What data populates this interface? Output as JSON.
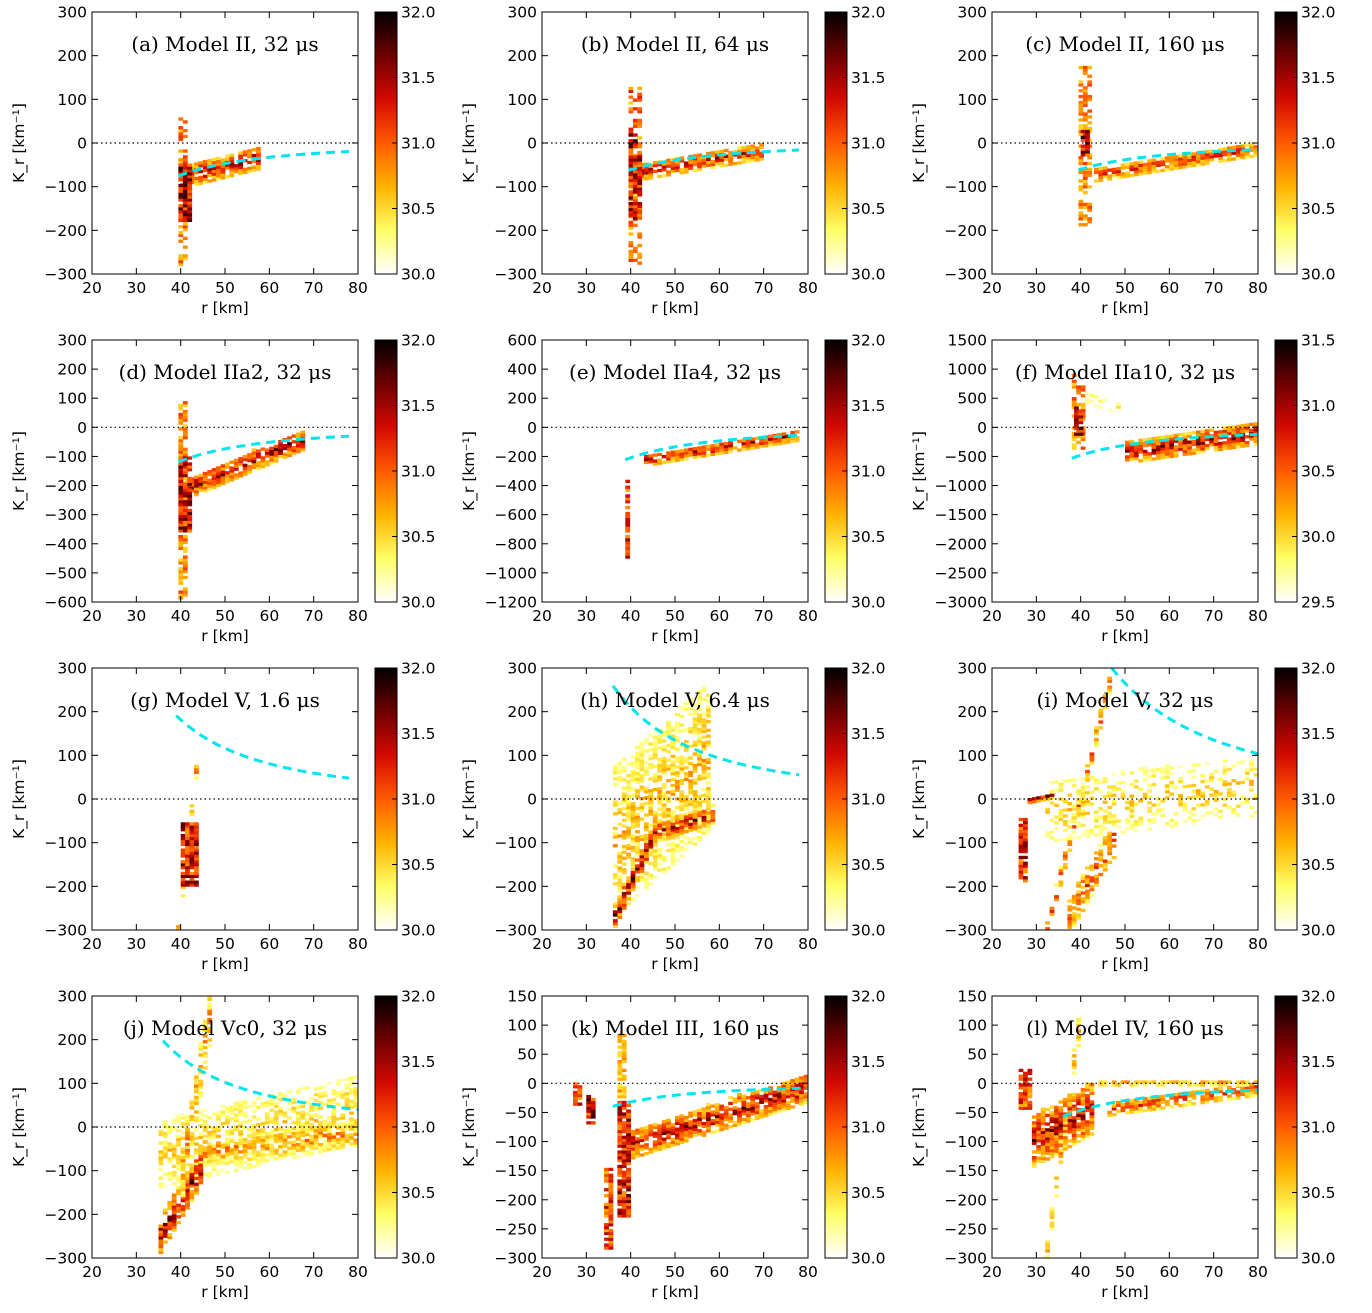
{
  "colormap": {
    "name": "afmhot_r",
    "stops": [
      "#ffffff",
      "#ffff66",
      "#ffb300",
      "#ff5a00",
      "#d40a00",
      "#6e0000",
      "#000000"
    ]
  },
  "fit_color": "#00e5ee",
  "chart_data": [
    {
      "type": "heatmap",
      "panel": "a",
      "label": "(a) Model II, 32 μs",
      "xlabel": "r [km]",
      "ylabel": "K_r [km⁻¹]",
      "xlim": [
        20,
        80
      ],
      "ylim": [
        -300,
        300
      ],
      "xticks": [
        "20",
        "30",
        "40",
        "50",
        "60",
        "70",
        "80"
      ],
      "yticks": [
        "300",
        "200",
        "100",
        "0",
        "−100",
        "−200",
        "−300"
      ],
      "colorbar": {
        "min": 30.0,
        "max": 32.0,
        "ticks": [
          "32.0",
          "31.5",
          "31.0",
          "30.5",
          "30.0"
        ]
      },
      "zero_line": true,
      "fit_x_end": 78,
      "regions": [
        {
          "x": [
            40,
            58
          ],
          "y_at_start": -80,
          "y_at_end": -35,
          "spread": 25,
          "intensity": 0.75,
          "density": 0.85
        },
        {
          "x": [
            39.5,
            41.5
          ],
          "y_at_start": -280,
          "y_at_end": 50,
          "spread": 8,
          "intensity": 0.55,
          "density": 0.5
        },
        {
          "x": [
            39.5,
            42
          ],
          "y_at_start": -160,
          "y_at_end": -70,
          "spread": 20,
          "intensity": 0.9,
          "density": 0.9
        }
      ]
    },
    {
      "type": "heatmap",
      "panel": "b",
      "label": "(b) Model II, 64 μs",
      "xlabel": "r [km]",
      "ylabel": "K_r [km⁻¹]",
      "xlim": [
        20,
        80
      ],
      "ylim": [
        -300,
        300
      ],
      "xticks": [
        "20",
        "30",
        "40",
        "50",
        "60",
        "70",
        "80"
      ],
      "yticks": [
        "300",
        "200",
        "100",
        "0",
        "−100",
        "−200",
        "−300"
      ],
      "colorbar": {
        "min": 30.0,
        "max": 32.0,
        "ticks": [
          "32.0",
          "31.5",
          "31.0",
          "30.5",
          "30.0"
        ]
      },
      "zero_line": true,
      "fit_x_end": 78,
      "regions": [
        {
          "x": [
            41,
            70
          ],
          "y_at_start": -70,
          "y_at_end": -20,
          "spread": 18,
          "intensity": 0.7,
          "density": 0.8
        },
        {
          "x": [
            39.5,
            42
          ],
          "y_at_start": -270,
          "y_at_end": 120,
          "spread": 8,
          "intensity": 0.6,
          "density": 0.55
        },
        {
          "x": [
            39.5,
            42
          ],
          "y_at_start": -150,
          "y_at_end": -60,
          "spread": 25,
          "intensity": 0.85,
          "density": 0.85
        },
        {
          "x": [
            39.5,
            41
          ],
          "y_at_start": -10,
          "y_at_end": 10,
          "spread": 8,
          "intensity": 0.95,
          "density": 0.9
        }
      ]
    },
    {
      "type": "heatmap",
      "panel": "c",
      "label": "(c) Model II, 160 μs",
      "xlabel": "r [km]",
      "ylabel": "K_r [km⁻¹]",
      "xlim": [
        20,
        80
      ],
      "ylim": [
        -300,
        300
      ],
      "xticks": [
        "20",
        "30",
        "40",
        "50",
        "60",
        "70",
        "80"
      ],
      "yticks": [
        "300",
        "200",
        "100",
        "0",
        "−100",
        "−200",
        "−300"
      ],
      "colorbar": {
        "min": 30.0,
        "max": 32.0,
        "ticks": [
          "32.0",
          "31.5",
          "31.0",
          "30.5",
          "30.0"
        ]
      },
      "zero_line": true,
      "fit_x_end": 80,
      "regions": [
        {
          "x": [
            43,
            80
          ],
          "y_at_start": -75,
          "y_at_end": -15,
          "spread": 15,
          "intensity": 0.65,
          "density": 0.85
        },
        {
          "x": [
            39.5,
            42
          ],
          "y_at_start": -180,
          "y_at_end": 160,
          "spread": 10,
          "intensity": 0.55,
          "density": 0.5
        },
        {
          "x": [
            40,
            41.5
          ],
          "y_at_start": -20,
          "y_at_end": 20,
          "spread": 10,
          "intensity": 0.9,
          "density": 0.9
        }
      ]
    },
    {
      "type": "heatmap",
      "panel": "d",
      "label": "(d) Model IIa2, 32 μs",
      "xlabel": "r [km]",
      "ylabel": "K_r [km⁻¹]",
      "xlim": [
        20,
        80
      ],
      "ylim": [
        -600,
        300
      ],
      "xticks": [
        "20",
        "30",
        "40",
        "50",
        "60",
        "70",
        "80"
      ],
      "yticks": [
        "300",
        "200",
        "100",
        "0",
        "−100",
        "−200",
        "−300",
        "−400",
        "−500",
        "−600"
      ],
      "colorbar": {
        "min": 30.0,
        "max": 32.0,
        "ticks": [
          "32.0",
          "31.5",
          "31.0",
          "30.5",
          "30.0"
        ]
      },
      "zero_line": true,
      "fit_x_end": 78,
      "regions": [
        {
          "x": [
            40,
            68
          ],
          "y_at_start": -220,
          "y_at_end": -40,
          "spread": 35,
          "intensity": 0.78,
          "density": 0.85
        },
        {
          "x": [
            39.5,
            41
          ],
          "y_at_start": -580,
          "y_at_end": 80,
          "spread": 10,
          "intensity": 0.55,
          "density": 0.55
        },
        {
          "x": [
            39.5,
            42
          ],
          "y_at_start": -330,
          "y_at_end": -130,
          "spread": 30,
          "intensity": 0.85,
          "density": 0.85
        }
      ]
    },
    {
      "type": "heatmap",
      "panel": "e",
      "label": "(e) Model IIa4, 32 μs",
      "xlabel": "r [km]",
      "ylabel": "K_r [km⁻¹]",
      "xlim": [
        20,
        80
      ],
      "ylim": [
        -1200,
        600
      ],
      "xticks": [
        "20",
        "30",
        "40",
        "50",
        "60",
        "70",
        "80"
      ],
      "yticks": [
        "600",
        "400",
        "200",
        "0",
        "−200",
        "−400",
        "−600",
        "−800",
        "−1000",
        "−1200"
      ],
      "colorbar": {
        "min": 30.0,
        "max": 32.0,
        "ticks": [
          "32.0",
          "31.5",
          "31.0",
          "30.5",
          "30.0"
        ]
      },
      "zero_line": true,
      "fit_x_end": 78,
      "regions": [
        {
          "x": [
            43,
            78
          ],
          "y_at_start": -230,
          "y_at_end": -55,
          "spread": 40,
          "intensity": 0.72,
          "density": 0.85
        },
        {
          "x": [
            38.8,
            39.8
          ],
          "y_at_start": -880,
          "y_at_end": -380,
          "spread": 20,
          "intensity": 0.75,
          "density": 0.8
        }
      ]
    },
    {
      "type": "heatmap",
      "panel": "f",
      "label": "(f) Model IIa10, 32 μs",
      "xlabel": "r [km]",
      "ylabel": "K_r [km⁻¹]",
      "xlim": [
        20,
        80
      ],
      "ylim": [
        -3000,
        1500
      ],
      "xticks": [
        "20",
        "30",
        "40",
        "50",
        "60",
        "70",
        "80"
      ],
      "yticks": [
        "1500",
        "1000",
        "500",
        "0",
        "−500",
        "−1000",
        "−1500",
        "−2000",
        "−2500",
        "−3000"
      ],
      "colorbar": {
        "min": 29.5,
        "max": 31.5,
        "ticks": [
          "31.5",
          "31.0",
          "30.5",
          "30.0",
          "29.5"
        ]
      },
      "zero_line": true,
      "fit_x_end": 80,
      "regions": [
        {
          "x": [
            50,
            80
          ],
          "y_at_start": -450,
          "y_at_end": -120,
          "spread": 180,
          "intensity": 0.78,
          "density": 0.85
        },
        {
          "x": [
            38,
            41
          ],
          "y_at_start": -300,
          "y_at_end": 800,
          "spread": 80,
          "intensity": 0.55,
          "density": 0.5
        },
        {
          "x": [
            38.5,
            40.5
          ],
          "y_at_start": -100,
          "y_at_end": 300,
          "spread": 40,
          "intensity": 0.9,
          "density": 0.9
        },
        {
          "x": [
            41,
            49
          ],
          "y_at_start": 500,
          "y_at_end": 300,
          "spread": 100,
          "intensity": 0.2,
          "density": 0.35
        }
      ]
    },
    {
      "type": "heatmap",
      "panel": "g",
      "label": "(g) Model V, 1.6 μs",
      "xlabel": "r [km]",
      "ylabel": "K_r [km⁻¹]",
      "xlim": [
        20,
        80
      ],
      "ylim": [
        -300,
        300
      ],
      "xticks": [
        "20",
        "30",
        "40",
        "50",
        "60",
        "70",
        "80"
      ],
      "yticks": [
        "300",
        "200",
        "100",
        "0",
        "−100",
        "−200",
        "−300"
      ],
      "colorbar": {
        "min": 30.0,
        "max": 32.0,
        "ticks": [
          "32.0",
          "31.5",
          "31.0",
          "30.5",
          "30.0"
        ]
      },
      "zero_line": true,
      "fit_x_end": 78,
      "regions": [
        {
          "x": [
            39,
            44
          ],
          "y_at_start": -300,
          "y_at_end": 150,
          "spread": 15,
          "intensity": 0.45,
          "density": 0.55
        },
        {
          "x": [
            40,
            44
          ],
          "y_at_start": -180,
          "y_at_end": -80,
          "spread": 20,
          "intensity": 0.85,
          "density": 0.9
        }
      ]
    },
    {
      "type": "heatmap",
      "panel": "h",
      "label": "(h) Model V, 6.4 μs",
      "xlabel": "r [km]",
      "ylabel": "K_r [km⁻¹]",
      "xlim": [
        20,
        80
      ],
      "ylim": [
        -300,
        300
      ],
      "xticks": [
        "20",
        "30",
        "40",
        "50",
        "60",
        "70",
        "80"
      ],
      "yticks": [
        "300",
        "200",
        "100",
        "0",
        "−100",
        "−200",
        "−300"
      ],
      "colorbar": {
        "min": 30.0,
        "max": 32.0,
        "ticks": [
          "32.0",
          "31.5",
          "31.0",
          "30.5",
          "30.0"
        ]
      },
      "zero_line": true,
      "fit_x_end": 78,
      "regions": [
        {
          "x": [
            36,
            58
          ],
          "y_at_start": -100,
          "y_at_end": 100,
          "spread": 170,
          "intensity": 0.35,
          "density": 0.55
        },
        {
          "x": [
            36,
            45
          ],
          "y_at_start": -270,
          "y_at_end": -80,
          "spread": 25,
          "intensity": 0.85,
          "density": 0.9
        },
        {
          "x": [
            45,
            59
          ],
          "y_at_start": -80,
          "y_at_end": -35,
          "spread": 20,
          "intensity": 0.75,
          "density": 0.85
        }
      ]
    },
    {
      "type": "heatmap",
      "panel": "i",
      "label": "(i) Model V, 32 μs",
      "xlabel": "r [km]",
      "ylabel": "K_r [km⁻¹]",
      "xlim": [
        20,
        80
      ],
      "ylim": [
        -300,
        300
      ],
      "xticks": [
        "20",
        "30",
        "40",
        "50",
        "60",
        "70",
        "80"
      ],
      "yticks": [
        "300",
        "200",
        "100",
        "0",
        "−100",
        "−200",
        "−300"
      ],
      "colorbar": {
        "min": 30.0,
        "max": 32.0,
        "ticks": [
          "32.0",
          "31.5",
          "31.0",
          "30.5",
          "30.0"
        ]
      },
      "zero_line": true,
      "fit_x_end": 80,
      "regions": [
        {
          "x": [
            32,
            47
          ],
          "y_at_start": -300,
          "y_at_end": 300,
          "spread": 20,
          "intensity": 0.6,
          "density": 0.65
        },
        {
          "x": [
            32,
            80
          ],
          "y_at_start": -30,
          "y_at_end": 30,
          "spread": 70,
          "intensity": 0.3,
          "density": 0.35
        },
        {
          "x": [
            28,
            34
          ],
          "y_at_start": -6,
          "y_at_end": 6,
          "spread": 5,
          "intensity": 1.0,
          "density": 1.0
        },
        {
          "x": [
            26,
            28
          ],
          "y_at_start": -180,
          "y_at_end": -60,
          "spread": 10,
          "intensity": 0.8,
          "density": 0.85
        },
        {
          "x": [
            37,
            48
          ],
          "y_at_start": -270,
          "y_at_end": -80,
          "spread": 40,
          "intensity": 0.6,
          "density": 0.7
        }
      ]
    },
    {
      "type": "heatmap",
      "panel": "j",
      "label": "(j) Model Vc0, 32 μs",
      "xlabel": "r [km]",
      "ylabel": "K_r [km⁻¹]",
      "xlim": [
        20,
        80
      ],
      "ylim": [
        -300,
        300
      ],
      "xticks": [
        "20",
        "30",
        "40",
        "50",
        "60",
        "70",
        "80"
      ],
      "yticks": [
        "300",
        "200",
        "100",
        "0",
        "−100",
        "−200",
        "−300"
      ],
      "colorbar": {
        "min": 30.0,
        "max": 32.0,
        "ticks": [
          "32.0",
          "31.5",
          "31.0",
          "30.5",
          "30.0"
        ]
      },
      "zero_line": true,
      "fit_x_end": 80,
      "regions": [
        {
          "x": [
            35,
            80
          ],
          "y_at_start": -60,
          "y_at_end": 40,
          "spread": 80,
          "intensity": 0.3,
          "density": 0.5
        },
        {
          "x": [
            35,
            45
          ],
          "y_at_start": -250,
          "y_at_end": -80,
          "spread": 40,
          "intensity": 0.8,
          "density": 0.85
        },
        {
          "x": [
            40,
            47
          ],
          "y_at_start": -100,
          "y_at_end": 300,
          "spread": 60,
          "intensity": 0.45,
          "density": 0.6
        },
        {
          "x": [
            45,
            80
          ],
          "y_at_start": -60,
          "y_at_end": -15,
          "spread": 30,
          "intensity": 0.45,
          "density": 0.6
        }
      ]
    },
    {
      "type": "heatmap",
      "panel": "k",
      "label": "(k) Model III, 160 μs",
      "xlabel": "r [km]",
      "ylabel": "K_r [km⁻¹]",
      "xlim": [
        20,
        80
      ],
      "ylim": [
        -300,
        150
      ],
      "xticks": [
        "20",
        "30",
        "40",
        "50",
        "60",
        "70",
        "80"
      ],
      "yticks": [
        "150",
        "100",
        "50",
        "0",
        "−50",
        "−100",
        "−150",
        "−200",
        "−250",
        "−300"
      ],
      "colorbar": {
        "min": 30.0,
        "max": 32.0,
        "ticks": [
          "32.0",
          "31.5",
          "31.0",
          "30.5",
          "30.0"
        ]
      },
      "zero_line": true,
      "fit_x_end": 80,
      "regions": [
        {
          "x": [
            38,
            80
          ],
          "y_at_start": -110,
          "y_at_end": -8,
          "spread": 25,
          "intensity": 0.75,
          "density": 0.85
        },
        {
          "x": [
            37,
            40
          ],
          "y_at_start": -200,
          "y_at_end": -60,
          "spread": 30,
          "intensity": 0.85,
          "density": 0.85
        },
        {
          "x": [
            34,
            36
          ],
          "y_at_start": -260,
          "y_at_end": -170,
          "spread": 25,
          "intensity": 0.7,
          "density": 0.8
        },
        {
          "x": [
            27,
            29
          ],
          "y_at_start": -30,
          "y_at_end": -10,
          "spread": 8,
          "intensity": 0.7,
          "density": 0.8
        },
        {
          "x": [
            30,
            32
          ],
          "y_at_start": -60,
          "y_at_end": -30,
          "spread": 10,
          "intensity": 0.9,
          "density": 0.85
        },
        {
          "x": [
            37,
            39
          ],
          "y_at_start": -10,
          "y_at_end": 70,
          "spread": 15,
          "intensity": 0.4,
          "density": 0.55
        }
      ]
    },
    {
      "type": "heatmap",
      "panel": "l",
      "label": "(l) Model IV, 160 μs",
      "xlabel": "r [km]",
      "ylabel": "K_r [km⁻¹]",
      "xlim": [
        20,
        80
      ],
      "ylim": [
        -300,
        150
      ],
      "xticks": [
        "20",
        "30",
        "40",
        "50",
        "60",
        "70",
        "80"
      ],
      "yticks": [
        "150",
        "100",
        "50",
        "0",
        "−50",
        "−100",
        "−150",
        "−200",
        "−250",
        "−300"
      ],
      "colorbar": {
        "min": 30.0,
        "max": 32.0,
        "ticks": [
          "32.0",
          "31.5",
          "31.0",
          "30.5",
          "30.0"
        ]
      },
      "zero_line": true,
      "fit_x_end": 80,
      "regions": [
        {
          "x": [
            29,
            43
          ],
          "y_at_start": -100,
          "y_at_end": -40,
          "spread": 45,
          "intensity": 0.75,
          "density": 0.85
        },
        {
          "x": [
            32,
            40
          ],
          "y_at_start": -280,
          "y_at_end": 140,
          "spread": 25,
          "intensity": 0.4,
          "density": 0.5
        },
        {
          "x": [
            26,
            29
          ],
          "y_at_start": -30,
          "y_at_end": 10,
          "spread": 15,
          "intensity": 0.7,
          "density": 0.8
        },
        {
          "x": [
            46,
            80
          ],
          "y_at_start": -45,
          "y_at_end": -10,
          "spread": 12,
          "intensity": 0.6,
          "density": 0.8
        },
        {
          "x": [
            44,
            80
          ],
          "y_at_start": -2,
          "y_at_end": -2,
          "spread": 3,
          "intensity": 0.55,
          "density": 0.7
        }
      ]
    }
  ]
}
